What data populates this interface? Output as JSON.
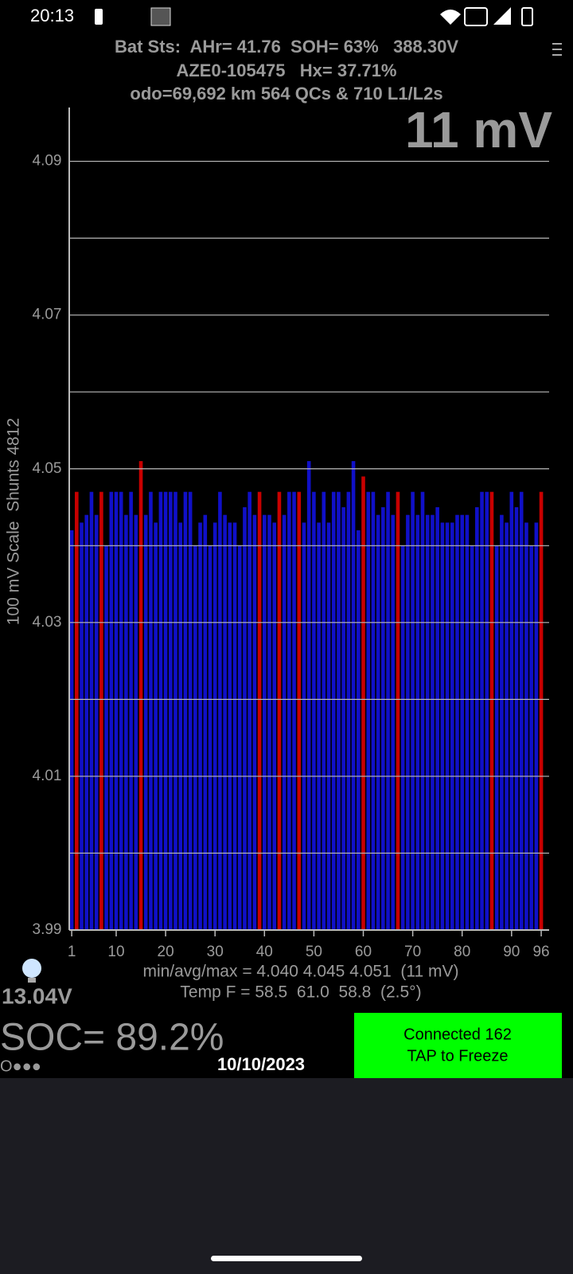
{
  "status_bar": {
    "time": "20:13"
  },
  "header": {
    "line1": "Bat Sts:  AHr= 41.76  SOH= 63%   388.30V",
    "line2": "AZE0-105475   Hx= 37.71%",
    "line3": "odo=69,692 km 564 QCs & 710 L1/L2s"
  },
  "chart_data": {
    "type": "bar",
    "title": "11 mV",
    "y_label": "100 mV Scale  Shunts 4812",
    "x": [
      1,
      2,
      3,
      4,
      5,
      6,
      7,
      8,
      9,
      10,
      11,
      12,
      13,
      14,
      15,
      16,
      17,
      18,
      19,
      20,
      21,
      22,
      23,
      24,
      25,
      26,
      27,
      28,
      29,
      30,
      31,
      32,
      33,
      34,
      35,
      36,
      37,
      38,
      39,
      40,
      41,
      42,
      43,
      44,
      45,
      46,
      47,
      48,
      49,
      50,
      51,
      52,
      53,
      54,
      55,
      56,
      57,
      58,
      59,
      60,
      61,
      62,
      63,
      64,
      65,
      66,
      67,
      68,
      69,
      70,
      71,
      72,
      73,
      74,
      75,
      76,
      77,
      78,
      79,
      80,
      81,
      82,
      83,
      84,
      85,
      86,
      87,
      88,
      89,
      90,
      91,
      92,
      93,
      94,
      95,
      96
    ],
    "values": [
      4.042,
      4.047,
      4.043,
      4.044,
      4.047,
      4.044,
      4.047,
      4.04,
      4.047,
      4.047,
      4.047,
      4.044,
      4.047,
      4.044,
      4.051,
      4.044,
      4.047,
      4.043,
      4.047,
      4.047,
      4.047,
      4.047,
      4.043,
      4.047,
      4.047,
      4.04,
      4.043,
      4.044,
      4.04,
      4.043,
      4.047,
      4.044,
      4.043,
      4.043,
      4.04,
      4.045,
      4.047,
      4.044,
      4.047,
      4.044,
      4.044,
      4.043,
      4.047,
      4.044,
      4.047,
      4.047,
      4.047,
      4.043,
      4.051,
      4.047,
      4.043,
      4.047,
      4.043,
      4.047,
      4.047,
      4.045,
      4.047,
      4.051,
      4.042,
      4.049,
      4.047,
      4.047,
      4.044,
      4.045,
      4.047,
      4.044,
      4.047,
      4.04,
      4.044,
      4.047,
      4.044,
      4.047,
      4.044,
      4.044,
      4.045,
      4.043,
      4.043,
      4.043,
      4.044,
      4.044,
      4.044,
      4.04,
      4.045,
      4.047,
      4.047,
      4.047,
      4.04,
      4.044,
      4.043,
      4.047,
      4.045,
      4.047,
      4.043,
      4.04,
      4.043,
      4.047
    ],
    "colors": [
      "#1010c8",
      "#c80000",
      "#1010c8",
      "#1010c8",
      "#1010c8",
      "#1010c8",
      "#c80000",
      "#1010c8",
      "#1010c8",
      "#1010c8",
      "#1010c8",
      "#1010c8",
      "#1010c8",
      "#1010c8",
      "#c80000",
      "#1010c8",
      "#1010c8",
      "#1010c8",
      "#1010c8",
      "#1010c8",
      "#1010c8",
      "#1010c8",
      "#1010c8",
      "#1010c8",
      "#1010c8",
      "#1010c8",
      "#1010c8",
      "#1010c8",
      "#1010c8",
      "#1010c8",
      "#1010c8",
      "#1010c8",
      "#1010c8",
      "#1010c8",
      "#1010c8",
      "#1010c8",
      "#1010c8",
      "#1010c8",
      "#c80000",
      "#1010c8",
      "#1010c8",
      "#1010c8",
      "#c80000",
      "#1010c8",
      "#1010c8",
      "#1010c8",
      "#c80000",
      "#1010c8",
      "#1010c8",
      "#1010c8",
      "#1010c8",
      "#1010c8",
      "#1010c8",
      "#1010c8",
      "#1010c8",
      "#1010c8",
      "#1010c8",
      "#1010c8",
      "#1010c8",
      "#c80000",
      "#1010c8",
      "#1010c8",
      "#1010c8",
      "#1010c8",
      "#1010c8",
      "#1010c8",
      "#c80000",
      "#1010c8",
      "#1010c8",
      "#1010c8",
      "#1010c8",
      "#1010c8",
      "#1010c8",
      "#1010c8",
      "#1010c8",
      "#1010c8",
      "#1010c8",
      "#1010c8",
      "#1010c8",
      "#1010c8",
      "#1010c8",
      "#1010c8",
      "#1010c8",
      "#1010c8",
      "#1010c8",
      "#c80000",
      "#1010c8",
      "#1010c8",
      "#1010c8",
      "#1010c8",
      "#1010c8",
      "#1010c8",
      "#1010c8",
      "#1010c8",
      "#1010c8",
      "#c80000"
    ],
    "xlim": [
      0.5,
      97.6
    ],
    "xticks": [
      1,
      10,
      20,
      30,
      40,
      50,
      60,
      70,
      80,
      90,
      96
    ],
    "ylim": [
      3.99,
      4.097
    ],
    "yticks": [
      3.99,
      4.01,
      4.03,
      4.05,
      4.07,
      4.09
    ],
    "minor_yticks": [
      4.0,
      4.02,
      4.04,
      4.06,
      4.08
    ],
    "grid": true
  },
  "stats": {
    "line1": "min/avg/max = 4.040 4.045 4.051  (11 mV)",
    "line2": "Temp F = 58.5  61.0  58.8  (2.5°)"
  },
  "footer": {
    "voltage": "13.04V",
    "soc": "SOC= 89.2%",
    "indicator": "O●●●",
    "date": "10/10/2023",
    "button_line1": "Connected 162",
    "button_line2": "TAP to Freeze"
  }
}
